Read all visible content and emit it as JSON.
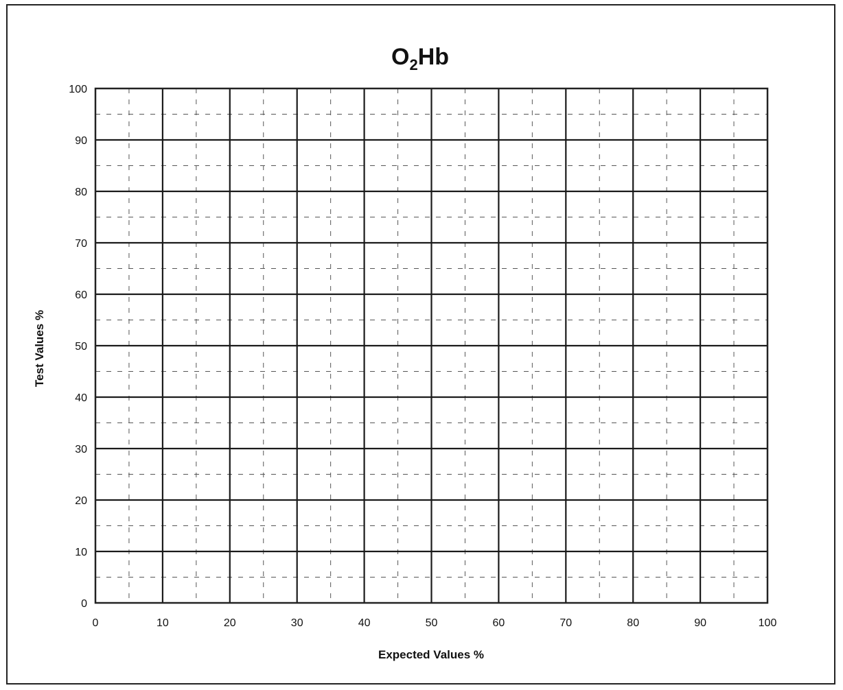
{
  "chart_data": {
    "type": "scatter",
    "title": {
      "main": "O",
      "subscript": "2",
      "suffix": "Hb"
    },
    "xlabel": "Expected Values %",
    "ylabel": "Test Values %",
    "xlim": [
      0,
      100
    ],
    "ylim": [
      0,
      100
    ],
    "x_ticks": [
      0,
      10,
      20,
      30,
      40,
      50,
      60,
      70,
      80,
      90,
      100
    ],
    "y_ticks": [
      0,
      10,
      20,
      30,
      40,
      50,
      60,
      70,
      80,
      90,
      100
    ],
    "major_grid_step": 10,
    "minor_grid_step": 5,
    "grid": true,
    "series": [],
    "colors": {
      "major_grid": "#1a1a1a",
      "minor_grid": "#555555",
      "frame": "#222222"
    }
  }
}
